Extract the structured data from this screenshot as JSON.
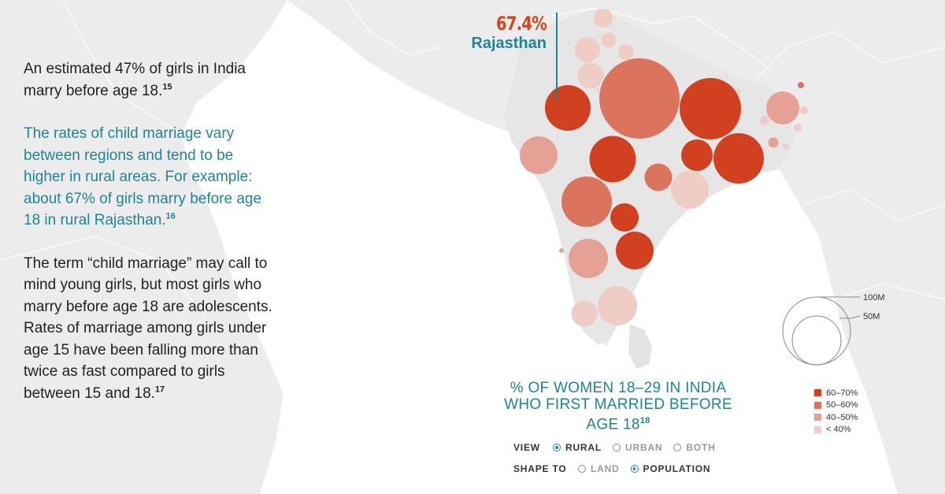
{
  "story": {
    "p1": "An estimated 47% of girls in India marry before age 18.",
    "p1_ref": "15",
    "p2": "The rates of child marriage vary between regions and tend to be higher in rural areas. For example: about 67% of girls marry before age 18 in rural Rajasthan.",
    "p2_ref": "16",
    "p3": "The term “child marriage” may call to mind young girls, but most girls who marry before age 18 are adolescents. Rates of marriage among girls under age 15 have been falling more than twice as fast compared to girls between 15 and 18.",
    "p3_ref": "17"
  },
  "callout": {
    "value": "67.4%",
    "region": "Rajasthan"
  },
  "chart_title": "% OF WOMEN 18–29 IN INDIA WHO FIRST MARRIED BEFORE AGE 18",
  "chart_title_ref": "18",
  "controls": {
    "view_label": "VIEW",
    "view_options": [
      {
        "label": "RURAL",
        "selected": true
      },
      {
        "label": "URBAN",
        "selected": false
      },
      {
        "label": "BOTH",
        "selected": false
      }
    ],
    "shape_label": "SHAPE TO",
    "shape_options": [
      {
        "label": "LAND",
        "selected": false
      },
      {
        "label": "POPULATION",
        "selected": true
      }
    ]
  },
  "size_key": {
    "large": "100M",
    "small": "50M"
  },
  "legend": [
    {
      "label": "60–70%",
      "color": "#d1401f"
    },
    {
      "label": "50–60%",
      "color": "#dc745d"
    },
    {
      "label": "40–50%",
      "color": "#e4a194"
    },
    {
      "label": "< 40%",
      "color": "#efcdc5"
    }
  ],
  "colors": {
    "accent": "#1e8596",
    "highlight": "#d4461f"
  }
}
